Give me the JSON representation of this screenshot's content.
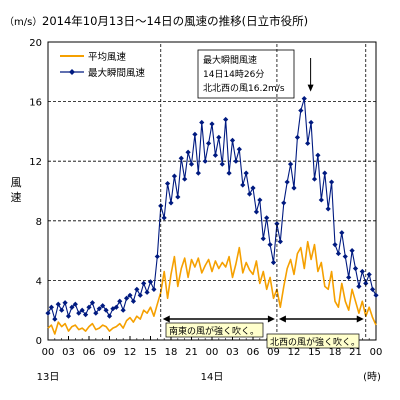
{
  "chart_data": {
    "type": "line",
    "title": "2014年10月13日～14日の風速の推移(日立市役所)",
    "unit_label": "（m/s）",
    "ylabel": "風速",
    "xlabel_suffix": "(時)",
    "ylim": [
      0,
      20
    ],
    "yticks": [
      0,
      4,
      8,
      12,
      16,
      20
    ],
    "xlim": [
      0,
      48
    ],
    "xtick_labels": [
      "00",
      "03",
      "06",
      "09",
      "12",
      "15",
      "18",
      "21",
      "00",
      "03",
      "06",
      "09",
      "12",
      "15",
      "18",
      "21",
      "00"
    ],
    "day_labels": [
      {
        "text": "13日",
        "at_hour": 0
      },
      {
        "text": "14日",
        "at_hour": 24
      }
    ],
    "legend_position": "top-left",
    "grid": "horizontal-dashed",
    "series": [
      {
        "name": "平均風速",
        "color": "#f5a000",
        "marker": "none",
        "x": [
          0,
          0.5,
          1,
          1.5,
          2,
          2.5,
          3,
          3.5,
          4,
          4.5,
          5,
          5.5,
          6,
          6.5,
          7,
          7.5,
          8,
          8.5,
          9,
          9.5,
          10,
          10.5,
          11,
          11.5,
          12,
          12.5,
          13,
          13.5,
          14,
          14.5,
          15,
          15.5,
          16,
          16.5,
          17,
          17.5,
          18,
          18.5,
          19,
          19.5,
          20,
          20.5,
          21,
          21.5,
          22,
          22.5,
          23,
          23.5,
          24,
          24.5,
          25,
          25.5,
          26,
          26.5,
          27,
          27.5,
          28,
          28.5,
          29,
          29.5,
          30,
          30.5,
          31,
          31.5,
          32,
          32.5,
          33,
          33.5,
          34,
          34.5,
          35,
          35.5,
          36,
          36.5,
          37,
          37.5,
          38,
          38.5,
          39,
          39.5,
          40,
          40.5,
          41,
          41.5,
          42,
          42.5,
          43,
          43.5,
          44,
          44.5,
          45,
          45.5,
          46,
          46.5,
          47,
          47.5,
          48
        ],
        "y": [
          0.8,
          1.0,
          0.4,
          1.2,
          0.9,
          1.1,
          0.6,
          0.9,
          1.0,
          0.7,
          0.8,
          0.6,
          0.9,
          1.1,
          0.7,
          0.8,
          1.0,
          0.9,
          0.6,
          0.8,
          0.9,
          1.1,
          0.8,
          1.3,
          1.5,
          1.2,
          1.6,
          1.4,
          2.0,
          1.8,
          2.2,
          1.6,
          2.4,
          3.2,
          4.6,
          2.8,
          4.4,
          5.6,
          3.6,
          4.8,
          5.5,
          4.2,
          5.4,
          4.9,
          5.5,
          4.5,
          5.0,
          5.4,
          4.6,
          5.3,
          4.8,
          5.2,
          4.9,
          5.6,
          4.2,
          5.1,
          6.2,
          4.5,
          5.2,
          4.7,
          4.4,
          5.3,
          3.8,
          4.6,
          3.4,
          4.2,
          2.8,
          3.4,
          2.2,
          3.6,
          4.8,
          5.4,
          4.4,
          5.8,
          6.2,
          4.8,
          6.6,
          5.4,
          6.4,
          4.6,
          5.2,
          3.6,
          3.4,
          4.6,
          2.6,
          2.2,
          3.8,
          2.6,
          2.0,
          3.4,
          2.6,
          1.8,
          2.6,
          1.6,
          2.2,
          1.5,
          1.0
        ]
      },
      {
        "name": "最大瞬間風速",
        "color": "#001a80",
        "marker": "diamond",
        "x": [
          0,
          0.5,
          1,
          1.5,
          2,
          2.5,
          3,
          3.5,
          4,
          4.5,
          5,
          5.5,
          6,
          6.5,
          7,
          7.5,
          8,
          8.5,
          9,
          9.5,
          10,
          10.5,
          11,
          11.5,
          12,
          12.5,
          13,
          13.5,
          14,
          14.5,
          15,
          15.5,
          16,
          16.5,
          17,
          17.5,
          18,
          18.5,
          19,
          19.5,
          20,
          20.5,
          21,
          21.5,
          22,
          22.5,
          23,
          23.5,
          24,
          24.5,
          25,
          25.5,
          26,
          26.5,
          27,
          27.5,
          28,
          28.5,
          29,
          29.5,
          30,
          30.5,
          31,
          31.5,
          32,
          32.5,
          33,
          33.5,
          34,
          34.5,
          35,
          35.5,
          36,
          36.5,
          37,
          37.5,
          38,
          38.5,
          39,
          39.5,
          40,
          40.5,
          41,
          41.5,
          42,
          42.5,
          43,
          43.5,
          44,
          44.5,
          45,
          45.5,
          46,
          46.5,
          47,
          47.5,
          48
        ],
        "y": [
          1.8,
          2.2,
          1.4,
          2.4,
          2.0,
          2.5,
          1.6,
          2.2,
          2.4,
          1.8,
          2.0,
          1.7,
          2.2,
          2.5,
          1.8,
          2.1,
          2.3,
          2.0,
          1.6,
          2.1,
          2.2,
          2.6,
          2.0,
          2.8,
          3.0,
          2.6,
          3.4,
          3.0,
          3.8,
          3.2,
          3.9,
          3.4,
          5.6,
          9.0,
          8.2,
          10.5,
          9.2,
          11.0,
          9.6,
          12.2,
          10.8,
          12.6,
          11.8,
          13.8,
          11.2,
          14.6,
          12.0,
          13.2,
          14.5,
          12.4,
          13.6,
          11.8,
          14.8,
          11.2,
          13.4,
          12.0,
          12.8,
          10.4,
          11.2,
          9.8,
          10.2,
          8.6,
          9.4,
          6.8,
          8.2,
          6.4,
          5.2,
          7.8,
          6.6,
          9.2,
          10.6,
          11.8,
          10.2,
          13.6,
          15.4,
          16.2,
          13.2,
          14.6,
          10.8,
          12.4,
          9.4,
          11.2,
          8.8,
          10.6,
          6.4,
          5.8,
          7.2,
          5.6,
          4.2,
          6.0,
          4.8,
          3.6,
          4.6,
          3.8,
          4.4,
          3.4,
          3.0
        ]
      }
    ],
    "annotations": {
      "peak_box": {
        "lines": [
          "最大瞬間風速",
          "14日14時26分",
          "北北西の風16.2m/s"
        ],
        "points_to": {
          "x": 38.43,
          "y": 16.2
        }
      },
      "wind_periods": [
        {
          "text": "南東の風が強く吹く。",
          "from_hour": 16.5,
          "to_hour": 33.5
        },
        {
          "text": "北西の風が強く吹く。",
          "from_hour": 33.5,
          "to_hour": 46.5
        }
      ]
    }
  }
}
